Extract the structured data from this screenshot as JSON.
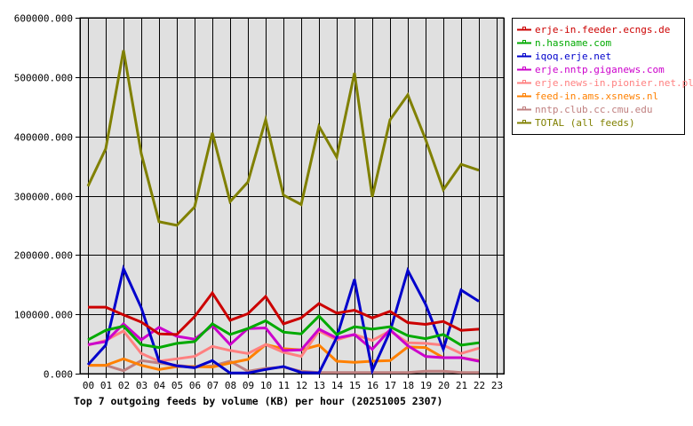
{
  "chart_data": {
    "type": "line",
    "title": "Top 7 outgoing feeds by volume (KB) per hour (20251005 2307)",
    "xlabel": "",
    "ylabel": "",
    "ylim": [
      0,
      600000
    ],
    "yticks": [
      "0.000",
      "100000.000",
      "200000.000",
      "300000.000",
      "400000.000",
      "500000.000",
      "600000.000"
    ],
    "ytick_values": [
      0,
      100000,
      200000,
      300000,
      400000,
      500000,
      600000
    ],
    "categories": [
      "00",
      "01",
      "02",
      "03",
      "04",
      "05",
      "06",
      "07",
      "08",
      "09",
      "10",
      "11",
      "12",
      "13",
      "14",
      "15",
      "16",
      "17",
      "18",
      "19",
      "20",
      "21",
      "22",
      "23"
    ],
    "grid": true,
    "legend_position": "right",
    "series": [
      {
        "name": "erje-in.feeder.ecngs.de",
        "color": "#cc0000",
        "values": [
          112000,
          112000,
          99000,
          87000,
          67000,
          66000,
          96000,
          136000,
          90000,
          101000,
          130000,
          84000,
          94000,
          118000,
          102000,
          107000,
          94000,
          105000,
          86000,
          83000,
          88000,
          73000,
          75000
        ]
      },
      {
        "name": "n.hasname.com",
        "color": "#00aa00",
        "values": [
          57000,
          73000,
          80000,
          49000,
          44000,
          51000,
          54000,
          84000,
          66000,
          76000,
          89000,
          70000,
          67000,
          97000,
          66000,
          79000,
          75000,
          79000,
          64000,
          59000,
          66000,
          48000,
          52000
        ]
      },
      {
        "name": "iqoq.erje.net",
        "color": "#0000cc",
        "values": [
          15000,
          48000,
          177000,
          111000,
          21000,
          13000,
          10000,
          22000,
          1000,
          1000,
          7000,
          12000,
          2000,
          1000,
          61000,
          159000,
          5000,
          71000,
          174000,
          117000,
          41000,
          141000,
          122000
        ]
      },
      {
        "name": "erje.nntp.giganews.com",
        "color": "#cc00cc",
        "values": [
          49000,
          54000,
          84000,
          57000,
          78000,
          63000,
          58000,
          81000,
          49000,
          76000,
          77000,
          39000,
          40000,
          75000,
          60000,
          66000,
          41000,
          74000,
          47000,
          29000,
          27000,
          27000,
          21000
        ]
      },
      {
        "name": "erje.news-in.pionier.net.pl",
        "color": "#ff8080",
        "values": [
          48000,
          56000,
          72000,
          34000,
          21000,
          25000,
          29000,
          46000,
          39000,
          34000,
          49000,
          36000,
          29000,
          72000,
          57000,
          66000,
          56000,
          72000,
          52000,
          51000,
          48000,
          34000,
          43000
        ]
      },
      {
        "name": "feed-in.ams.xsnews.nl",
        "color": "#ff8000",
        "values": [
          14000,
          14000,
          25000,
          14000,
          7000,
          12000,
          12000,
          11000,
          18000,
          24000,
          49000,
          42000,
          40000,
          48000,
          21000,
          19000,
          21000,
          22000,
          45000,
          44000,
          27000,
          27000,
          22000
        ]
      },
      {
        "name": "nntp.club.cc.cmu.edu",
        "color": "#c08080",
        "values": [
          14000,
          14000,
          5000,
          22000,
          18000,
          14000,
          11000,
          13000,
          21000,
          4000,
          9000,
          11000,
          4000,
          2000,
          2000,
          2000,
          2000,
          2000,
          2000,
          4000,
          4000,
          2000,
          2000
        ]
      },
      {
        "name": "TOTAL (all feeds)",
        "color": "#808000",
        "values": [
          316000,
          379000,
          545000,
          371000,
          256000,
          250000,
          281000,
          406000,
          290000,
          323000,
          428000,
          301000,
          285000,
          417000,
          365000,
          507000,
          298000,
          428000,
          470000,
          395000,
          310000,
          353000,
          343000
        ]
      }
    ]
  },
  "layout": {
    "plot_bg": "#e0e0e0",
    "grid_color": "#000000"
  }
}
